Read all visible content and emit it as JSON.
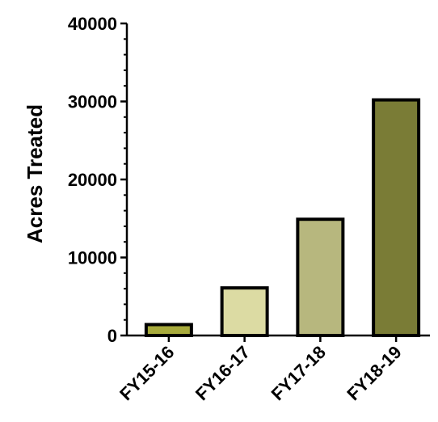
{
  "chart_data": {
    "type": "bar",
    "title": "",
    "xlabel": "",
    "ylabel": "Acres Treated",
    "categories": [
      "FY15-16",
      "FY16-17",
      "FY17-18",
      "FY18-19"
    ],
    "values": [
      1400,
      6100,
      14900,
      30200
    ],
    "ylim": [
      0,
      40000
    ],
    "yticks": [
      "0",
      "10000",
      "20000",
      "30000",
      "40000"
    ],
    "grid": false,
    "bar_colors": [
      "#a7aa3c",
      "#dcdba3",
      "#b7b77e",
      "#7a7c36"
    ],
    "bar_border_color": "#000000"
  }
}
